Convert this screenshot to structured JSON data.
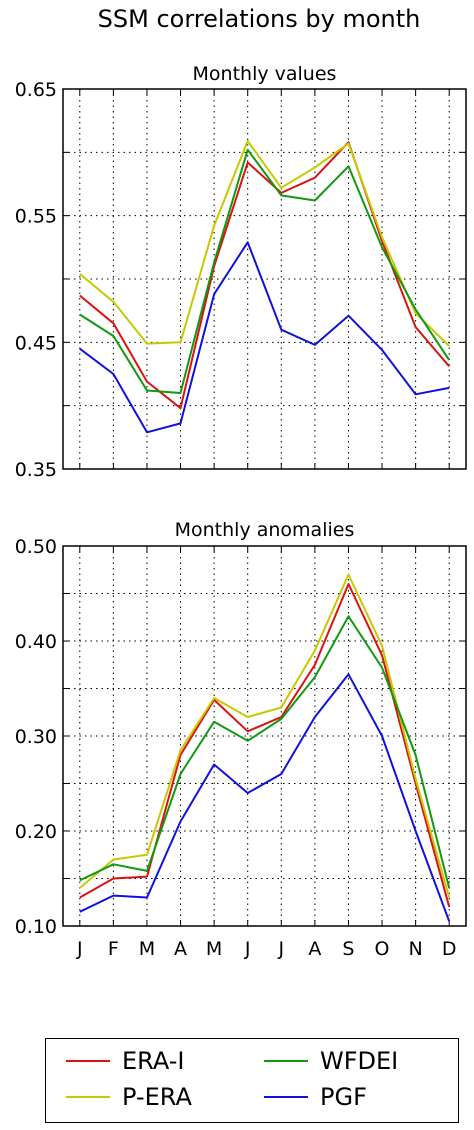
{
  "title": "SSM correlations by month",
  "chart_data": [
    {
      "type": "line",
      "title": "Monthly values",
      "x": [
        "J",
        "F",
        "M",
        "A",
        "M",
        "J",
        "J",
        "A",
        "S",
        "O",
        "N",
        "D"
      ],
      "ylim": [
        0.35,
        0.65
      ],
      "yticks": [
        "0.35",
        "0.45",
        "0.55",
        "0.65"
      ],
      "grid": true,
      "series": [
        {
          "name": "ERA-I",
          "color": "#dd1111",
          "values": [
            0.487,
            0.465,
            0.419,
            0.398,
            0.51,
            0.592,
            0.568,
            0.58,
            0.608,
            0.53,
            0.462,
            0.431
          ]
        },
        {
          "name": "P-ERA",
          "color": "#c8c800",
          "values": [
            0.504,
            0.482,
            0.449,
            0.45,
            0.542,
            0.609,
            0.572,
            0.588,
            0.607,
            0.533,
            0.473,
            0.447
          ]
        },
        {
          "name": "WFDEI",
          "color": "#119911",
          "values": [
            0.472,
            0.455,
            0.412,
            0.41,
            0.513,
            0.602,
            0.566,
            0.562,
            0.589,
            0.525,
            0.476,
            0.436
          ]
        },
        {
          "name": "PGF",
          "color": "#1111dd",
          "values": [
            0.445,
            0.425,
            0.379,
            0.386,
            0.488,
            0.529,
            0.46,
            0.448,
            0.471,
            0.444,
            0.409,
            0.414
          ]
        }
      ]
    },
    {
      "type": "line",
      "title": "Monthly anomalies",
      "x": [
        "J",
        "F",
        "M",
        "A",
        "M",
        "J",
        "J",
        "A",
        "S",
        "O",
        "N",
        "D"
      ],
      "ylim": [
        0.1,
        0.5
      ],
      "yticks": [
        "0.10",
        "0.20",
        "0.30",
        "0.40",
        "0.50"
      ],
      "xticks": [
        "J",
        "F",
        "M",
        "A",
        "M",
        "J",
        "J",
        "A",
        "S",
        "O",
        "N",
        "D"
      ],
      "grid": true,
      "series": [
        {
          "name": "ERA-I",
          "color": "#dd1111",
          "values": [
            0.13,
            0.15,
            0.152,
            0.28,
            0.338,
            0.305,
            0.32,
            0.375,
            0.46,
            0.385,
            0.25,
            0.12
          ]
        },
        {
          "name": "P-ERA",
          "color": "#c8c800",
          "values": [
            0.14,
            0.17,
            0.175,
            0.285,
            0.34,
            0.32,
            0.33,
            0.39,
            0.47,
            0.395,
            0.255,
            0.13
          ]
        },
        {
          "name": "WFDEI",
          "color": "#119911",
          "values": [
            0.148,
            0.165,
            0.158,
            0.26,
            0.315,
            0.295,
            0.318,
            0.362,
            0.426,
            0.372,
            0.28,
            0.14
          ]
        },
        {
          "name": "PGF",
          "color": "#1111dd",
          "values": [
            0.115,
            0.132,
            0.13,
            0.21,
            0.27,
            0.24,
            0.26,
            0.32,
            0.365,
            0.3,
            0.2,
            0.105
          ]
        }
      ]
    }
  ],
  "legend": {
    "placement": "bottom",
    "items": [
      {
        "label": "ERA-I",
        "color": "#dd1111"
      },
      {
        "label": "WFDEI",
        "color": "#119911"
      },
      {
        "label": "P-ERA",
        "color": "#c8c800"
      },
      {
        "label": "PGF",
        "color": "#1111dd"
      }
    ]
  }
}
